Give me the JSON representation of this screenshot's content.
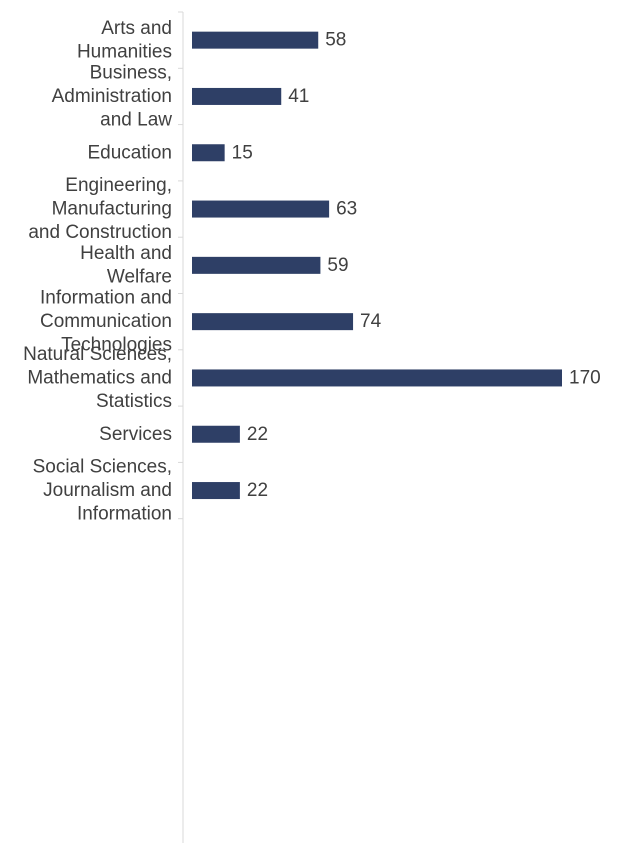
{
  "chart_data": {
    "type": "bar",
    "orientation": "horizontal",
    "categories": [
      [
        "Arts and",
        "Humanities"
      ],
      [
        "Business,",
        "Administration",
        "and Law"
      ],
      [
        "Education"
      ],
      [
        "Engineering,",
        "Manufacturing",
        "and Construction"
      ],
      [
        "Health and",
        "Welfare"
      ],
      [
        "Information and",
        "Communication",
        "Technologies"
      ],
      [
        "Natural Sciences,",
        "Mathematics and",
        "Statistics"
      ],
      [
        "Services"
      ],
      [
        "Social Sciences,",
        "Journalism and",
        "Information"
      ]
    ],
    "values": [
      58,
      41,
      15,
      63,
      59,
      74,
      170,
      22,
      22
    ],
    "bar_color": "#2e3f66",
    "xlim": [
      0,
      170
    ],
    "grid": false,
    "legend": "none",
    "data_labels": true
  }
}
